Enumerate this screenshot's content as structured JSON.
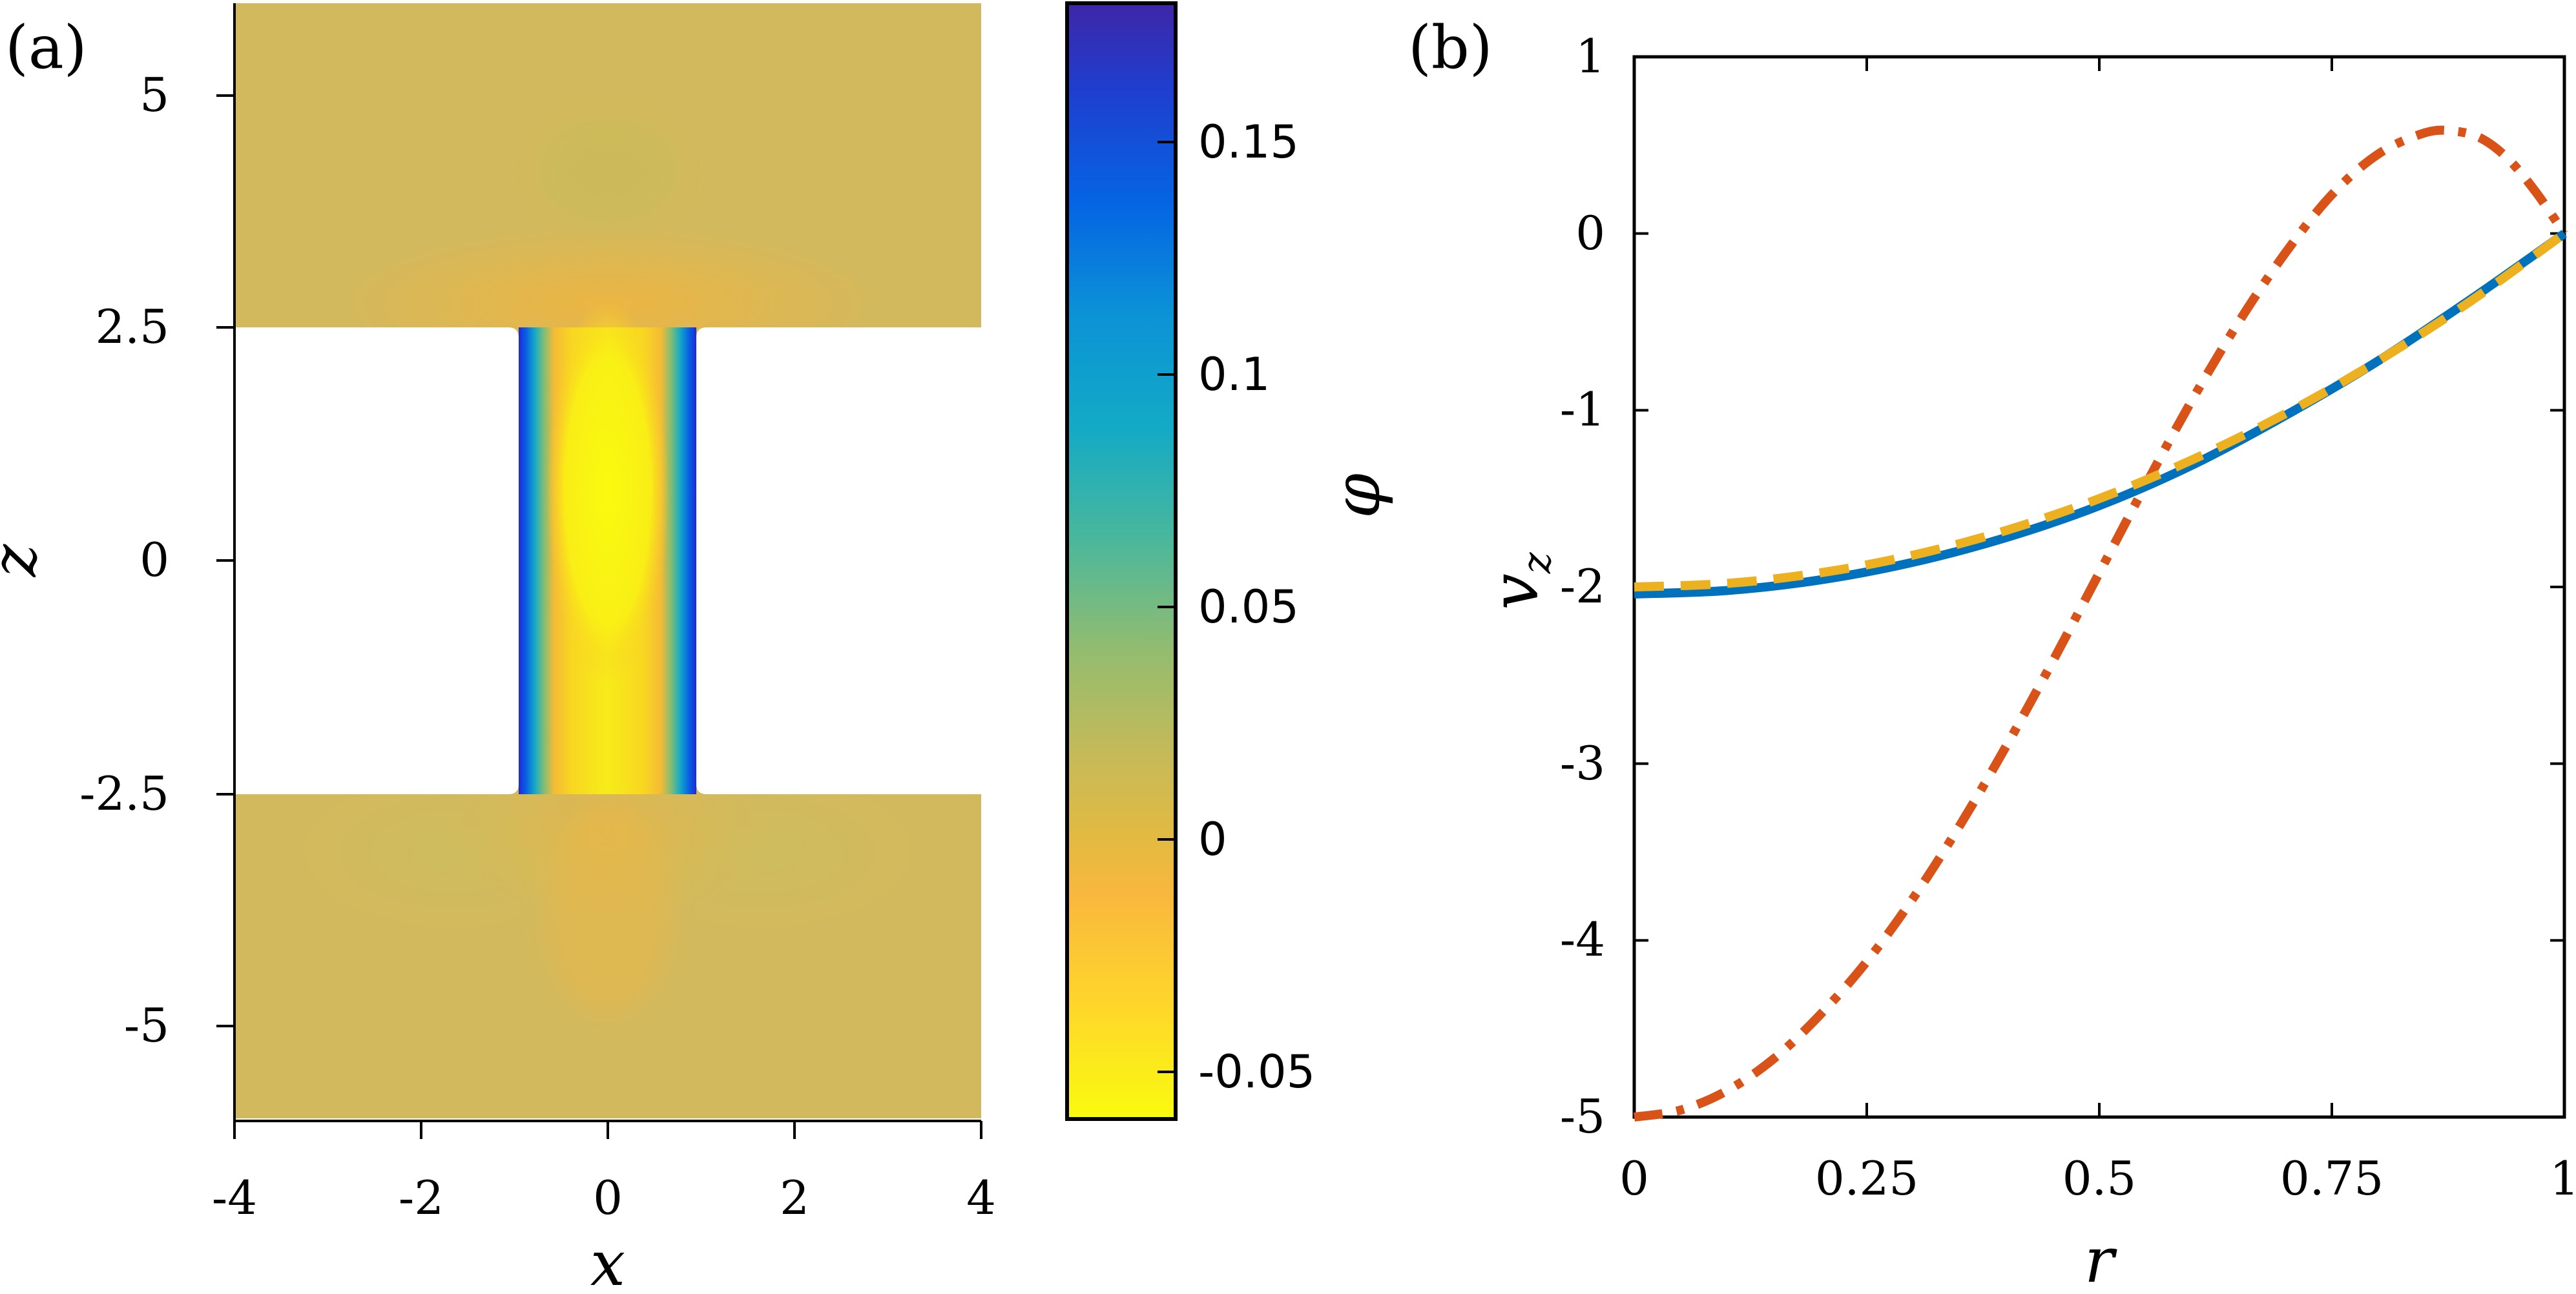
{
  "panel_a": {
    "label": "(a)",
    "xlabel": "x",
    "ylabel": "z",
    "xticks": [
      "-4",
      "-2",
      "0",
      "2",
      "4"
    ],
    "yticks": [
      "5",
      "2.5",
      "0",
      "-2.5",
      "-5"
    ],
    "colorbar": {
      "label": "φ",
      "ticks": [
        "0.15",
        "0.1",
        "0.05",
        "0",
        "-0.05"
      ]
    }
  },
  "panel_b": {
    "label": "(b)",
    "xlabel": "r",
    "ylabel": "v",
    "ylabel_sub": "z",
    "xticks": [
      "0",
      "0.25",
      "0.5",
      "0.75",
      "1"
    ],
    "yticks": [
      "1",
      "0",
      "-1",
      "-2",
      "-3",
      "-4",
      "-5"
    ]
  },
  "chart_data": [
    {
      "type": "heatmap",
      "panel": "(a)",
      "xlabel": "x",
      "ylabel": "z",
      "xlim": [
        -4,
        4
      ],
      "ylim": [
        -6,
        6
      ],
      "geometry": {
        "reservoir_halfwidth": 4,
        "channel_halfwidth": 1,
        "channel_halflength": 2.5,
        "domain_halfheight": 6
      },
      "colorbar": {
        "label": "φ",
        "range": [
          -0.06,
          0.18
        ],
        "ticks": [
          0.15,
          0.1,
          0.05,
          0,
          -0.05
        ],
        "colormap": "parula",
        "colors": [
          "#f9fb0e",
          "#fec52d",
          "#e3ba40",
          "#c9ba57",
          "#93bc6f",
          "#4ab79c",
          "#13aac6",
          "#0b87d8",
          "#0660e4",
          "#3e26a8"
        ]
      },
      "field_description": {
        "background": 0.0,
        "channel_center": -0.055,
        "near_walls": 0.165,
        "reservoir_lobes": -0.015
      }
    },
    {
      "type": "line",
      "panel": "(b)",
      "xlabel": "r",
      "ylabel": "v_z",
      "xlim": [
        0,
        1
      ],
      "ylim": [
        -5,
        1
      ],
      "series": [
        {
          "name": "solid",
          "style": "solid",
          "color": "#0072bd",
          "x": [
            0,
            0.1,
            0.2,
            0.3,
            0.4,
            0.5,
            0.6,
            0.7,
            0.8,
            0.9,
            1.0
          ],
          "y": [
            -2.04,
            -2.02,
            -1.96,
            -1.86,
            -1.72,
            -1.54,
            -1.31,
            -1.03,
            -0.72,
            -0.37,
            0.0
          ]
        },
        {
          "name": "dashed",
          "style": "dashed",
          "color": "#edb120",
          "x": [
            0,
            0.1,
            0.2,
            0.3,
            0.4,
            0.5,
            0.6,
            0.7,
            0.8,
            0.9,
            1.0
          ],
          "y": [
            -2.0,
            -1.98,
            -1.92,
            -1.82,
            -1.68,
            -1.5,
            -1.28,
            -1.02,
            -0.72,
            -0.38,
            0.0
          ]
        },
        {
          "name": "dash-dot",
          "style": "dashdot",
          "color": "#d95319",
          "x": [
            0,
            0.05,
            0.1,
            0.15,
            0.2,
            0.25,
            0.3,
            0.35,
            0.4,
            0.45,
            0.5,
            0.55,
            0.6,
            0.65,
            0.7,
            0.75,
            0.8,
            0.85,
            0.88,
            0.91,
            0.94,
            0.97,
            1.0
          ],
          "y": [
            -5.0,
            -4.96,
            -4.85,
            -4.67,
            -4.42,
            -4.12,
            -3.76,
            -3.35,
            -2.9,
            -2.42,
            -1.92,
            -1.42,
            -0.94,
            -0.5,
            -0.11,
            0.22,
            0.45,
            0.57,
            0.58,
            0.54,
            0.42,
            0.23,
            0.0
          ]
        }
      ]
    }
  ]
}
